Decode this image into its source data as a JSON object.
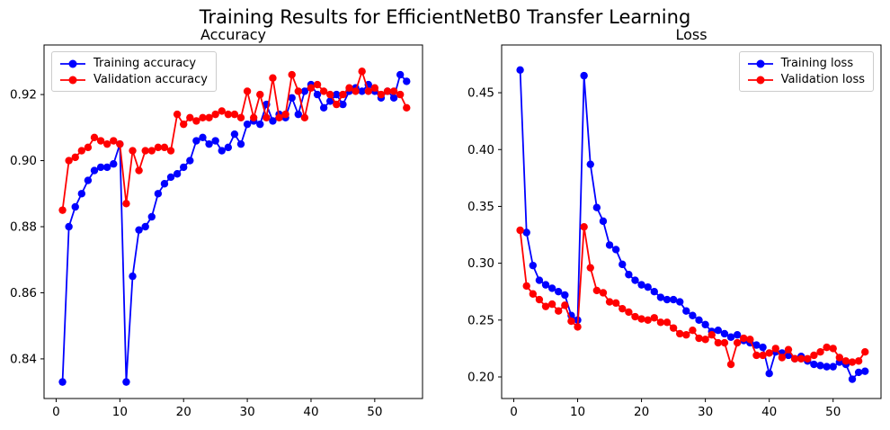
{
  "figure": {
    "title": "Training Results for EfficientNetB0 Transfer Learning",
    "background": "#ffffff",
    "axis_color": "#000000",
    "legend_edge_color": "#cccccc"
  },
  "chart_data": [
    {
      "type": "line",
      "title": "Accuracy",
      "xlabel": "",
      "ylabel": "",
      "x": [
        1,
        2,
        3,
        4,
        5,
        6,
        7,
        8,
        9,
        10,
        11,
        12,
        13,
        14,
        15,
        16,
        17,
        18,
        19,
        20,
        21,
        22,
        23,
        24,
        25,
        26,
        27,
        28,
        29,
        30,
        31,
        32,
        33,
        34,
        35,
        36,
        37,
        38,
        39,
        40,
        41,
        42,
        43,
        44,
        45,
        46,
        47,
        48,
        49,
        50,
        51,
        52,
        53,
        54,
        55
      ],
      "series": [
        {
          "name": "Training accuracy",
          "color": "#0000ff",
          "marker": "circle",
          "values": [
            0.833,
            0.88,
            0.886,
            0.89,
            0.894,
            0.897,
            0.898,
            0.898,
            0.899,
            0.905,
            0.833,
            0.865,
            0.879,
            0.88,
            0.883,
            0.89,
            0.893,
            0.895,
            0.896,
            0.898,
            0.9,
            0.906,
            0.907,
            0.905,
            0.906,
            0.903,
            0.904,
            0.908,
            0.905,
            0.911,
            0.912,
            0.911,
            0.917,
            0.912,
            0.914,
            0.913,
            0.919,
            0.914,
            0.921,
            0.923,
            0.92,
            0.916,
            0.918,
            0.92,
            0.917,
            0.921,
            0.922,
            0.921,
            0.923,
            0.921,
            0.919,
            0.921,
            0.919,
            0.926,
            0.924
          ]
        },
        {
          "name": "Validation accuracy",
          "color": "#ff0000",
          "marker": "circle",
          "values": [
            0.885,
            0.9,
            0.901,
            0.903,
            0.904,
            0.907,
            0.906,
            0.905,
            0.906,
            0.905,
            0.887,
            0.903,
            0.897,
            0.903,
            0.903,
            0.904,
            0.904,
            0.903,
            0.914,
            0.911,
            0.913,
            0.912,
            0.913,
            0.913,
            0.914,
            0.915,
            0.914,
            0.914,
            0.913,
            0.921,
            0.913,
            0.92,
            0.913,
            0.925,
            0.913,
            0.914,
            0.926,
            0.921,
            0.913,
            0.922,
            0.923,
            0.921,
            0.92,
            0.917,
            0.92,
            0.922,
            0.921,
            0.927,
            0.921,
            0.922,
            0.92,
            0.921,
            0.921,
            0.92,
            0.916
          ]
        }
      ],
      "xlim": [
        -1.9,
        57.5
      ],
      "ylim": [
        0.828,
        0.935
      ],
      "xticks": [
        0,
        10,
        20,
        30,
        40,
        50
      ],
      "xtick_labels": [
        "0",
        "10",
        "20",
        "30",
        "40",
        "50"
      ],
      "yticks": [
        0.84,
        0.86,
        0.88,
        0.9,
        0.92
      ],
      "ytick_labels": [
        "0.84",
        "0.86",
        "0.88",
        "0.90",
        "0.92"
      ],
      "grid": false,
      "legend_position": "upper-left"
    },
    {
      "type": "line",
      "title": "Loss",
      "xlabel": "",
      "ylabel": "",
      "x": [
        1,
        2,
        3,
        4,
        5,
        6,
        7,
        8,
        9,
        10,
        11,
        12,
        13,
        14,
        15,
        16,
        17,
        18,
        19,
        20,
        21,
        22,
        23,
        24,
        25,
        26,
        27,
        28,
        29,
        30,
        31,
        32,
        33,
        34,
        35,
        36,
        37,
        38,
        39,
        40,
        41,
        42,
        43,
        44,
        45,
        46,
        47,
        48,
        49,
        50,
        51,
        52,
        53,
        54,
        55
      ],
      "series": [
        {
          "name": "Training loss",
          "color": "#0000ff",
          "marker": "circle",
          "values": [
            0.47,
            0.327,
            0.298,
            0.285,
            0.281,
            0.278,
            0.275,
            0.272,
            0.254,
            0.25,
            0.465,
            0.387,
            0.349,
            0.337,
            0.316,
            0.312,
            0.299,
            0.29,
            0.285,
            0.281,
            0.279,
            0.275,
            0.27,
            0.268,
            0.268,
            0.266,
            0.258,
            0.254,
            0.25,
            0.246,
            0.24,
            0.241,
            0.238,
            0.235,
            0.237,
            0.232,
            0.23,
            0.228,
            0.226,
            0.203,
            0.222,
            0.221,
            0.219,
            0.216,
            0.218,
            0.214,
            0.211,
            0.21,
            0.209,
            0.209,
            0.213,
            0.211,
            0.198,
            0.204,
            0.205
          ]
        },
        {
          "name": "Validation loss",
          "color": "#ff0000",
          "marker": "circle",
          "values": [
            0.329,
            0.28,
            0.273,
            0.268,
            0.262,
            0.264,
            0.258,
            0.263,
            0.249,
            0.244,
            0.332,
            0.296,
            0.276,
            0.274,
            0.266,
            0.265,
            0.26,
            0.257,
            0.253,
            0.251,
            0.25,
            0.252,
            0.248,
            0.248,
            0.243,
            0.238,
            0.237,
            0.241,
            0.234,
            0.233,
            0.237,
            0.23,
            0.23,
            0.211,
            0.23,
            0.234,
            0.233,
            0.219,
            0.219,
            0.221,
            0.225,
            0.217,
            0.224,
            0.216,
            0.216,
            0.216,
            0.219,
            0.222,
            0.226,
            0.225,
            0.217,
            0.214,
            0.213,
            0.214,
            0.222
          ]
        }
      ],
      "xlim": [
        -1.9,
        57.5
      ],
      "ylim": [
        0.181,
        0.492
      ],
      "xticks": [
        0,
        10,
        20,
        30,
        40,
        50
      ],
      "xtick_labels": [
        "0",
        "10",
        "20",
        "30",
        "40",
        "50"
      ],
      "yticks": [
        0.2,
        0.25,
        0.3,
        0.35,
        0.4,
        0.45
      ],
      "ytick_labels": [
        "0.20",
        "0.25",
        "0.30",
        "0.35",
        "0.40",
        "0.45"
      ],
      "grid": false,
      "legend_position": "upper-right"
    }
  ]
}
